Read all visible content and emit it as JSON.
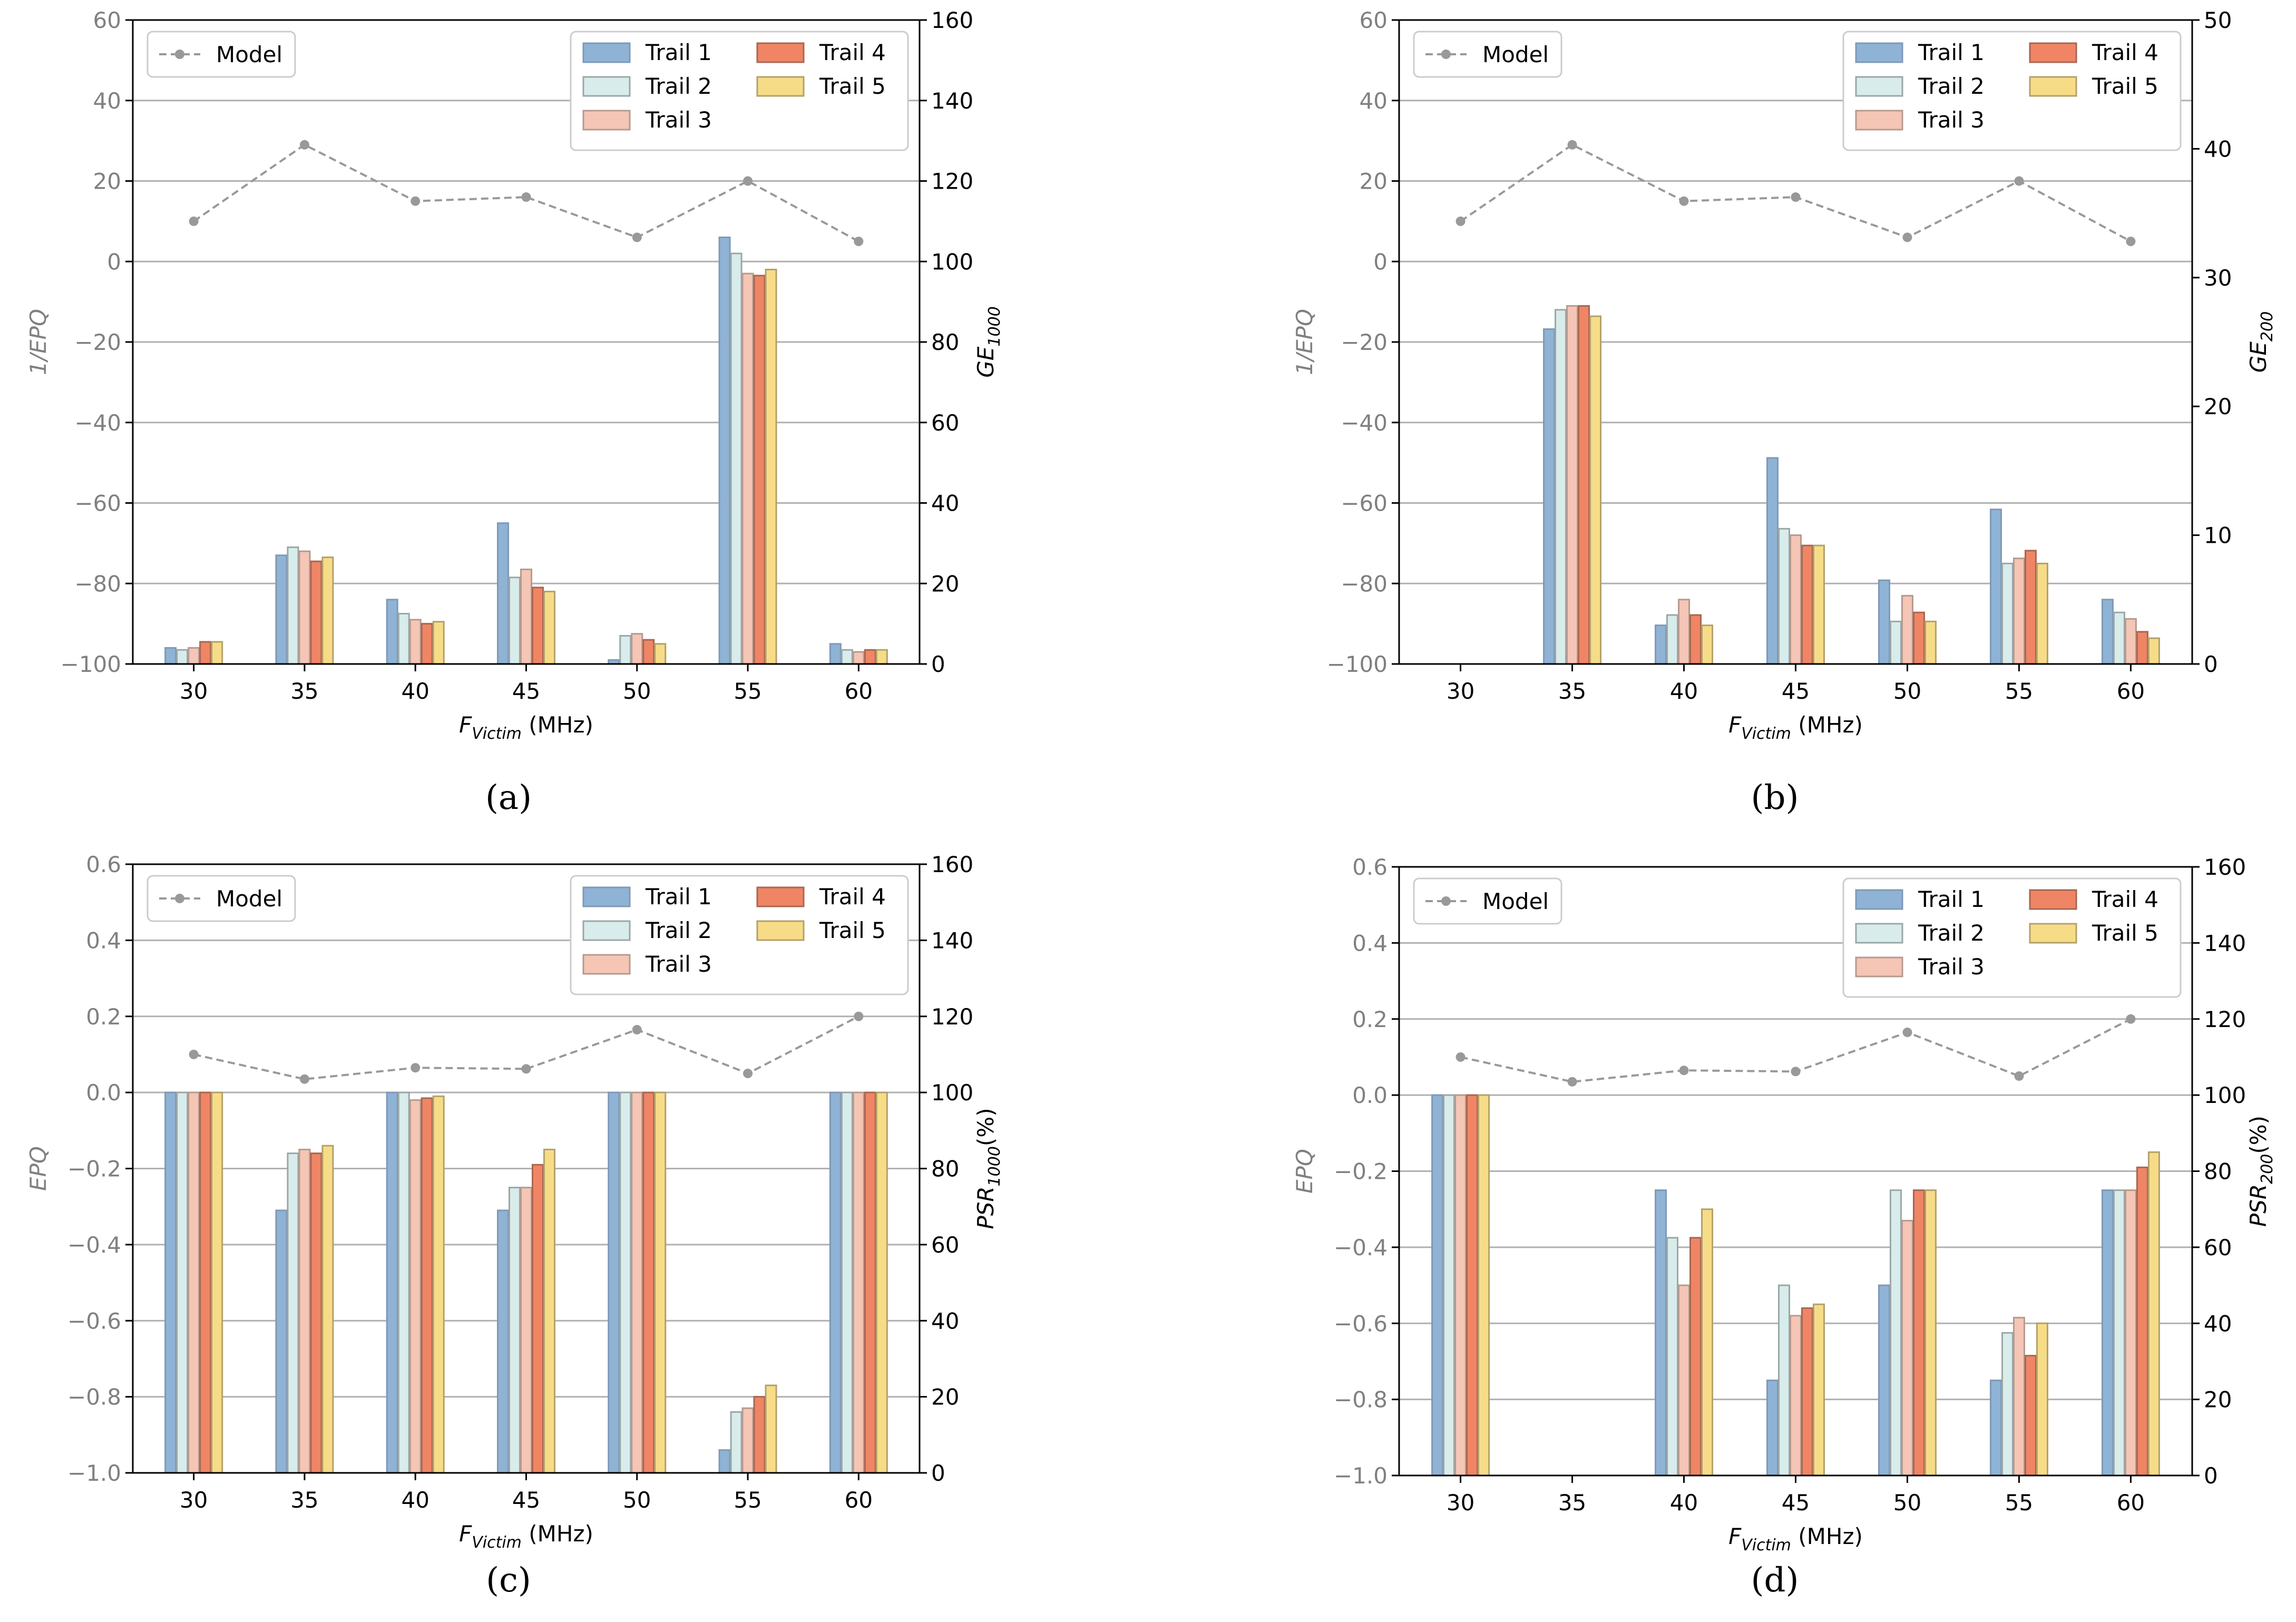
{
  "figure": {
    "captions": [
      "(a)",
      "(b)",
      "(c)",
      "(d)"
    ],
    "colors": {
      "trail1": "#8fb3d5",
      "trail2": "#d9ecec",
      "trail3": "#f5c5b5",
      "trail4": "#ef8565",
      "trail5": "#f7dc88",
      "model": "#999999",
      "left_axis_text": "#808080",
      "grid": "#b0b0b0"
    }
  },
  "chart_data": [
    {
      "type": "bar",
      "panel": "a",
      "x_categories": [
        "30",
        "35",
        "40",
        "45",
        "50",
        "55",
        "60"
      ],
      "xlabel_main": "F",
      "xlabel_sub": "Victim",
      "xlabel_unit": " (MHz)",
      "left_axis": {
        "label": "1/EPQ",
        "ylim": [
          -100,
          60
        ],
        "ticks": [
          -100,
          -80,
          -60,
          -40,
          -20,
          0,
          20,
          40,
          60
        ],
        "tick_labels": [
          "−100",
          "−80",
          "−60",
          "−40",
          "−20",
          "0",
          "20",
          "40",
          "60"
        ]
      },
      "right_axis": {
        "label_main": "GE",
        "label_sub": "1000",
        "ylim": [
          0,
          160
        ],
        "ticks": [
          0,
          20,
          40,
          60,
          80,
          100,
          120,
          140,
          160
        ],
        "tick_labels": [
          "0",
          "20",
          "40",
          "60",
          "80",
          "100",
          "120",
          "140",
          "160"
        ]
      },
      "model": {
        "name": "Model",
        "values": [
          10,
          29,
          15,
          16,
          6,
          20,
          5
        ]
      },
      "series": [
        {
          "name": "Trail 1",
          "values": [
            4,
            27,
            16,
            35,
            1,
            106,
            5
          ]
        },
        {
          "name": "Trail 2",
          "values": [
            3.5,
            29,
            12.5,
            21.5,
            7,
            102,
            3.5
          ]
        },
        {
          "name": "Trail 3",
          "values": [
            4,
            28,
            11,
            23.5,
            7.5,
            97,
            3
          ]
        },
        {
          "name": "Trail 4",
          "values": [
            5.5,
            25.5,
            10,
            19,
            6,
            96.5,
            3.5
          ]
        },
        {
          "name": "Trail 5",
          "values": [
            5.5,
            26.5,
            10.5,
            18,
            5,
            98,
            3.5
          ]
        }
      ]
    },
    {
      "type": "bar",
      "panel": "b",
      "x_categories": [
        "30",
        "35",
        "40",
        "45",
        "50",
        "55",
        "60"
      ],
      "xlabel_main": "F",
      "xlabel_sub": "Victim",
      "xlabel_unit": " (MHz)",
      "left_axis": {
        "label": "1/EPQ",
        "ylim": [
          -100,
          60
        ],
        "ticks": [
          -100,
          -80,
          -60,
          -40,
          -20,
          0,
          20,
          40,
          60
        ],
        "tick_labels": [
          "−100",
          "−80",
          "−60",
          "−40",
          "−20",
          "0",
          "20",
          "40",
          "60"
        ]
      },
      "right_axis": {
        "label_main": "GE",
        "label_sub": "200",
        "ylim": [
          0,
          50
        ],
        "ticks": [
          0,
          10,
          20,
          30,
          40,
          50
        ],
        "tick_labels": [
          "0",
          "10",
          "20",
          "30",
          "40",
          "50"
        ]
      },
      "model": {
        "name": "Model",
        "values": [
          10,
          29,
          15,
          16,
          6,
          20,
          5
        ]
      },
      "series": [
        {
          "name": "Trail 1",
          "values": [
            0,
            26,
            3,
            16,
            6.5,
            12,
            5
          ]
        },
        {
          "name": "Trail 2",
          "values": [
            0,
            27.5,
            3.8,
            10.5,
            3.3,
            7.8,
            4
          ]
        },
        {
          "name": "Trail 3",
          "values": [
            0,
            27.8,
            5,
            10,
            5.3,
            8.2,
            3.5
          ]
        },
        {
          "name": "Trail 4",
          "values": [
            0,
            27.8,
            3.8,
            9.2,
            4,
            8.8,
            2.5
          ]
        },
        {
          "name": "Trail 5",
          "values": [
            0,
            27,
            3,
            9.2,
            3.3,
            7.8,
            2
          ]
        }
      ]
    },
    {
      "type": "bar",
      "panel": "c",
      "x_categories": [
        "30",
        "35",
        "40",
        "45",
        "50",
        "55",
        "60"
      ],
      "xlabel_main": "F",
      "xlabel_sub": "Victim",
      "xlabel_unit": " (MHz)",
      "left_axis": {
        "label": "EPQ",
        "ylim": [
          -1.0,
          0.6
        ],
        "ticks": [
          -1.0,
          -0.8,
          -0.6,
          -0.4,
          -0.2,
          0.0,
          0.2,
          0.4,
          0.6
        ],
        "tick_labels": [
          "−1.0",
          "−0.8",
          "−0.6",
          "−0.4",
          "−0.2",
          "0.0",
          "0.2",
          "0.4",
          "0.6"
        ]
      },
      "right_axis": {
        "label_main": "PSR",
        "label_sub": "1000",
        "label_suffix": "(%)",
        "ylim": [
          0,
          160
        ],
        "ticks": [
          0,
          20,
          40,
          60,
          80,
          100,
          120,
          140,
          160
        ],
        "tick_labels": [
          "0",
          "20",
          "40",
          "60",
          "80",
          "100",
          "120",
          "140",
          "160"
        ]
      },
      "model": {
        "name": "Model",
        "values": [
          0.1,
          0.035,
          0.065,
          0.062,
          0.165,
          0.05,
          0.2
        ]
      },
      "series": [
        {
          "name": "Trail 1",
          "values": [
            100,
            69,
            100,
            69,
            100,
            6,
            100
          ]
        },
        {
          "name": "Trail 2",
          "values": [
            100,
            84,
            100,
            75,
            100,
            16,
            100
          ]
        },
        {
          "name": "Trail 3",
          "values": [
            100,
            85,
            98,
            75,
            100,
            17,
            100
          ]
        },
        {
          "name": "Trail 4",
          "values": [
            100,
            84,
            98.5,
            81,
            100,
            20,
            100
          ]
        },
        {
          "name": "Trail 5",
          "values": [
            100,
            86,
            99,
            85,
            100,
            23,
            100
          ]
        }
      ]
    },
    {
      "type": "bar",
      "panel": "d",
      "x_categories": [
        "30",
        "35",
        "40",
        "45",
        "50",
        "55",
        "60"
      ],
      "xlabel_main": "F",
      "xlabel_sub": "Victim",
      "xlabel_unit": " (MHz)",
      "left_axis": {
        "label": "EPQ",
        "ylim": [
          -1.0,
          0.6
        ],
        "ticks": [
          -1.0,
          -0.8,
          -0.6,
          -0.4,
          -0.2,
          0.0,
          0.2,
          0.4,
          0.6
        ],
        "tick_labels": [
          "−1.0",
          "−0.8",
          "−0.6",
          "−0.4",
          "−0.2",
          "0.0",
          "0.2",
          "0.4",
          "0.6"
        ]
      },
      "right_axis": {
        "label_main": "PSR",
        "label_sub": "200",
        "label_suffix": "(%)",
        "ylim": [
          0,
          160
        ],
        "ticks": [
          0,
          20,
          40,
          60,
          80,
          100,
          120,
          140,
          160
        ],
        "tick_labels": [
          "0",
          "20",
          "40",
          "60",
          "80",
          "100",
          "120",
          "140",
          "160"
        ]
      },
      "model": {
        "name": "Model",
        "values": [
          0.1,
          0.035,
          0.065,
          0.062,
          0.165,
          0.05,
          0.2
        ]
      },
      "series": [
        {
          "name": "Trail 1",
          "values": [
            100,
            0,
            75,
            25,
            50,
            25,
            75
          ]
        },
        {
          "name": "Trail 2",
          "values": [
            100,
            0,
            62.5,
            50,
            75,
            37.5,
            75
          ]
        },
        {
          "name": "Trail 3",
          "values": [
            100,
            0,
            50,
            42,
            67,
            41.5,
            75
          ]
        },
        {
          "name": "Trail 4",
          "values": [
            100,
            0,
            62.5,
            44,
            75,
            31.5,
            81
          ]
        },
        {
          "name": "Trail 5",
          "values": [
            100,
            0,
            70,
            45,
            75,
            40,
            85
          ]
        }
      ]
    }
  ]
}
